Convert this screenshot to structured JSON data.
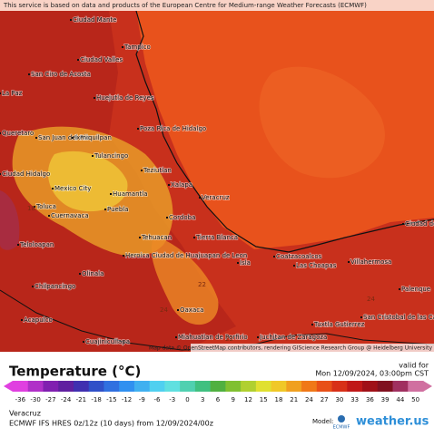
{
  "header": {
    "notice": "This service is based on data and products of the European Centre for Medium-range Weather Forecasts (ECMWF)"
  },
  "map": {
    "places": [
      "Ciudad Mante",
      "Tampico",
      "Ciudad Valles",
      "San Ciro de Acosta",
      "La Paz",
      "Huejutla de Reyes",
      "Queretaro",
      "San Juan del Rio",
      "Ixmiquilpan",
      "Poza Rica de Hidalgo",
      "Tulancingo",
      "Teziutlan",
      "Ciudad Hidalgo",
      "Mexico City",
      "Huamantla",
      "Xalapa",
      "Toluca",
      "Cuernavaca",
      "Puebla",
      "Veracruz",
      "Cordoba",
      "Tehuacan",
      "Tierra Blanca",
      "Teloloapan",
      "Heroica Ciudad de Huajuapan de Leon",
      "Isla",
      "Coatzacoalcos",
      "Las Choapas",
      "Villahermosa",
      "Ciudad del Carmen",
      "Olinala",
      "Chilpancingo",
      "Palenque",
      "Oaxaca",
      "Tuxtla Gutierrez",
      "San Cristobal de las Casas",
      "Acapulco",
      "Juchitan de Zaragoza",
      "Miahuatlan de Porfirio",
      "Cuajinicuilapa"
    ],
    "contour_labels": [
      22,
      24,
      24,
      22,
      18
    ],
    "attribution": "Map data © OpenStreetMap contributors, rendering GIScience Research Group @ Heidelberg University"
  },
  "legend": {
    "title": "Temperature (°C)",
    "valid_label": "valid for",
    "valid_time": "Mon 12/09/2024, 03:00pm CST",
    "ticks": [
      -36,
      -30,
      -27,
      -24,
      -21,
      -18,
      -15,
      -12,
      -9,
      -6,
      -3,
      0,
      3,
      6,
      9,
      12,
      15,
      18,
      21,
      24,
      27,
      30,
      33,
      36,
      39,
      44,
      50
    ],
    "colors": [
      "#e040e0",
      "#b030c8",
      "#8020b0",
      "#6020a0",
      "#4030b0",
      "#3050c8",
      "#3070e0",
      "#3090f0",
      "#40b0f0",
      "#50d0f0",
      "#60e0e0",
      "#50d0b0",
      "#40c080",
      "#50b040",
      "#80c030",
      "#b0d030",
      "#e0e030",
      "#f0c828",
      "#f0a020",
      "#f07818",
      "#e85018",
      "#d83018",
      "#c01818",
      "#a01018",
      "#801020",
      "#a03060",
      "#d070a0"
    ]
  },
  "footer": {
    "location": "Veracruz",
    "model_run": "ECMWF IFS HRES 0z/12z (10 days) from 12/09/2024/00z",
    "model_label": "Model:",
    "model_logo": "ECMWF",
    "brand": "weather.us"
  }
}
